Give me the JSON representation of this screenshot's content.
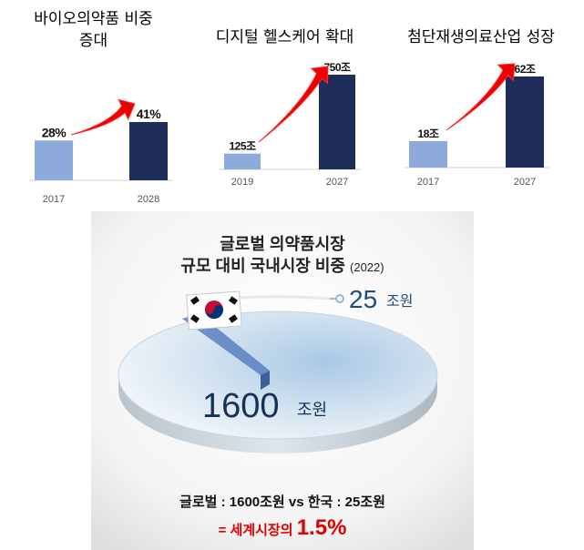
{
  "chart_data": [
    {
      "type": "bar",
      "title_lines": [
        "바이오의약품 비중",
        "증대"
      ],
      "categories": [
        "2017",
        "2028"
      ],
      "values": [
        28,
        41
      ],
      "labels": [
        "28%",
        "41%"
      ],
      "unit": "%",
      "colors": [
        "#8eaadb",
        "#1f2d5a"
      ]
    },
    {
      "type": "bar",
      "title_lines": [
        "디지털 헬스케어 확대"
      ],
      "categories": [
        "2019",
        "2027"
      ],
      "values": [
        125,
        750
      ],
      "labels": [
        "125조",
        "750조"
      ],
      "unit": "조",
      "colors": [
        "#8eaadb",
        "#1f2d5a"
      ]
    },
    {
      "type": "bar",
      "title_lines": [
        "첨단재생의료산업 성장"
      ],
      "categories": [
        "2017",
        "2027"
      ],
      "values": [
        18,
        62
      ],
      "labels": [
        "18조",
        "62조"
      ],
      "unit": "조",
      "colors": [
        "#8eaadb",
        "#1f2d5a"
      ]
    },
    {
      "type": "pie",
      "title_line1": "글로벌 의약품시장",
      "title_line2": "규모 대비 국내시장 비중",
      "title_year": "(2022)",
      "slices": [
        {
          "name": "글로벌",
          "value": 1600,
          "unit": "조원",
          "label_num": "1600",
          "label_unit": "조원"
        },
        {
          "name": "한국",
          "value": 25,
          "unit": "조원",
          "label_num": "25",
          "label_unit": "조원"
        }
      ],
      "summary_line1": "글로벌 : 1600조원 vs 한국 : 25조원",
      "summary_prefix": "= 세계시장의",
      "summary_percent": "1.5%",
      "colors": {
        "pie_top": "#c9dcec",
        "pie_edge": "#bfc7cf",
        "slice": "#5b7fc0",
        "text_blue": "#1f4e79",
        "red": "#e00000"
      }
    }
  ]
}
